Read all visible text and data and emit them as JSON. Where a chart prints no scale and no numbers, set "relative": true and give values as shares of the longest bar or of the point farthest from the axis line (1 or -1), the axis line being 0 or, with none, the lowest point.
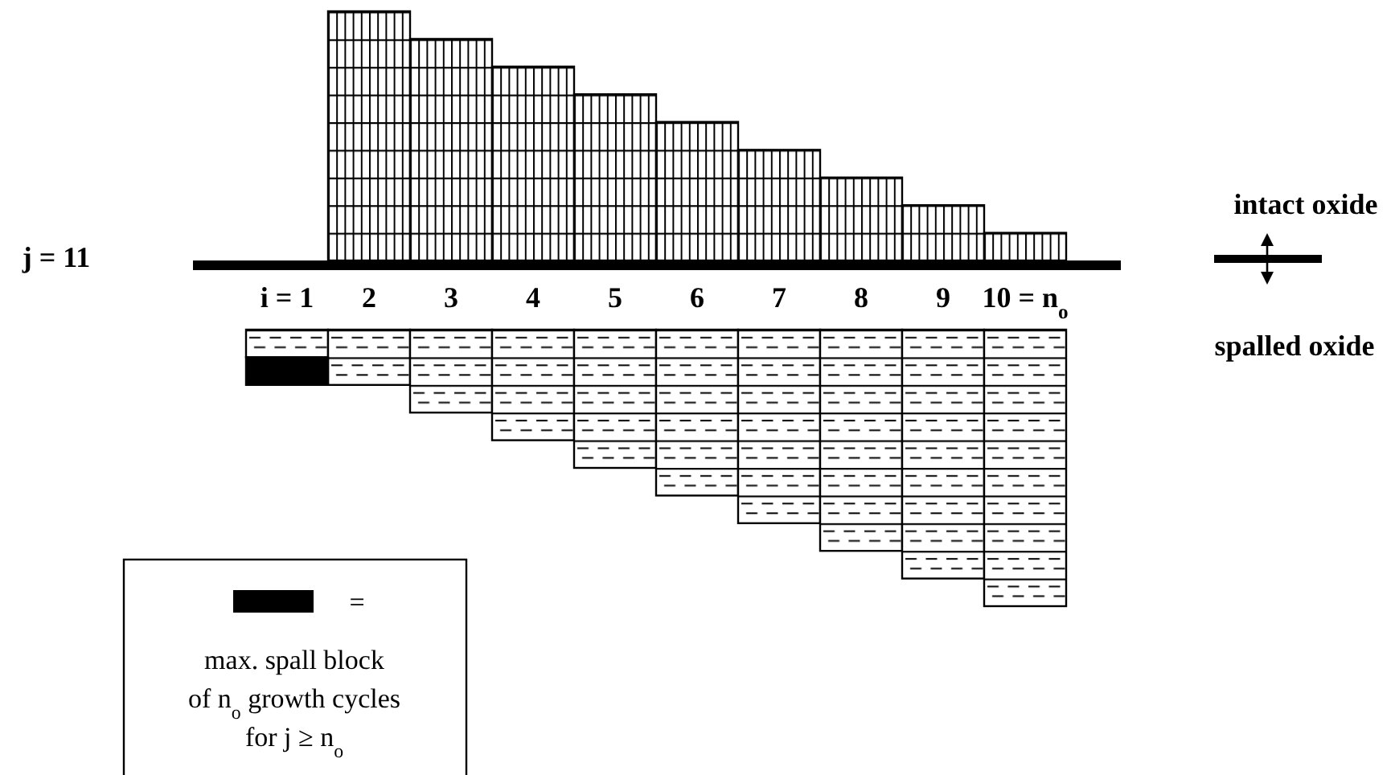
{
  "chart_data": [
    {
      "type": "bar",
      "relative": true,
      "stacked": true,
      "categories": [
        "i = 1",
        "2",
        "3",
        "4",
        "5",
        "6",
        "7",
        "8",
        "9",
        "10 = n$_{o}$"
      ],
      "series": [
        {
          "color": "#000000",
          "values": [
            0,
            1,
            0.889,
            0.778,
            0.667,
            0.556,
            0.444,
            0.333,
            0.222,
            0.111
          ]
        }
      ],
      "annotations": [
        "j = 11",
        "intact oxide"
      ]
    },
    {
      "type": "bar",
      "relative": true,
      "stacked": true,
      "legend": "bottom left",
      "categories": [
        null,
        null,
        null,
        null,
        null,
        null,
        null,
        null,
        null,
        null
      ],
      "series": [
        {
          "color": "#000000",
          "values": [
            -0.1,
            -0.2,
            -0.3,
            -0.4,
            -0.5,
            -0.6,
            -0.7,
            -0.8,
            -0.9,
            -1.0
          ]
        },
        {
          "name": "=\nmax. spall block\nof n$_{o}$ growth cycles\nfor j ≥ n$_{o}$",
          "color": "#000000",
          "values": [
            -0.1,
            null,
            null,
            null,
            null,
            null,
            null,
            null,
            null,
            null
          ]
        }
      ],
      "annotations": [
        "spalled oxide"
      ]
    }
  ]
}
